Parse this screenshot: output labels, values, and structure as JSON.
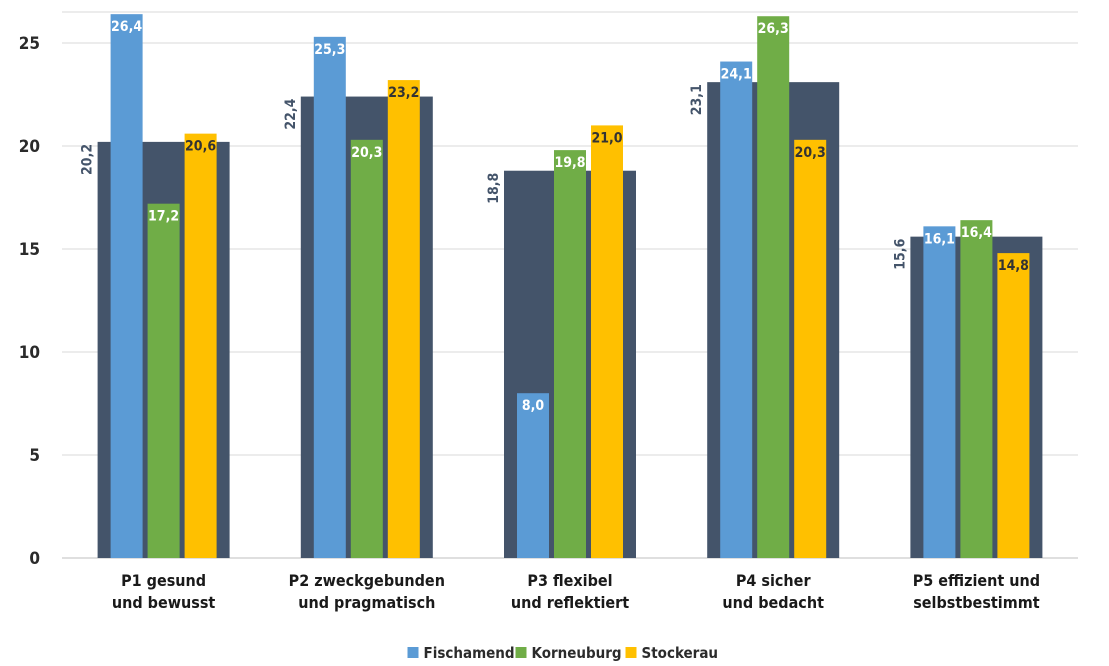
{
  "chart_data": {
    "type": "bar",
    "title": "",
    "xlabel": "",
    "ylabel": "",
    "ylim": [
      0,
      26
    ],
    "yticks": [
      0,
      5,
      10,
      15,
      20,
      25
    ],
    "grid": true,
    "legend_position": "bottom",
    "categories": [
      [
        "P1 gesund",
        "und bewusst"
      ],
      [
        "P2 zweckgebunden",
        "und pragmatisch"
      ],
      [
        "P3 flexibel",
        "und reflektiert"
      ],
      [
        "P4 sicher",
        "und bedacht"
      ],
      [
        "P5 effizient und",
        "selbstbestimmt"
      ]
    ],
    "background_series": {
      "values": [
        20.2,
        22.4,
        18.8,
        23.1,
        15.6
      ],
      "labels": [
        "20,2",
        "22,4",
        "18,8",
        "23,1",
        "15,6"
      ],
      "color": "#44546a"
    },
    "series": [
      {
        "name": "Fischamend",
        "color": "#5b9bd5",
        "values": [
          26.4,
          25.3,
          8.0,
          24.1,
          16.1
        ],
        "labels": [
          "26,4",
          "25,3",
          "8,0",
          "24,1",
          "16,1"
        ]
      },
      {
        "name": "Korneuburg",
        "color": "#70ad47",
        "values": [
          17.2,
          20.3,
          19.8,
          26.3,
          16.4
        ],
        "labels": [
          "17,2",
          "20,3",
          "19,8",
          "26,3",
          "16,4"
        ]
      },
      {
        "name": "Stockerau",
        "color": "#ffc000",
        "values": [
          20.6,
          23.2,
          21.0,
          20.3,
          14.8
        ],
        "labels": [
          "20,6",
          "23,2",
          "21,0",
          "20,3",
          "14,8"
        ]
      }
    ]
  }
}
